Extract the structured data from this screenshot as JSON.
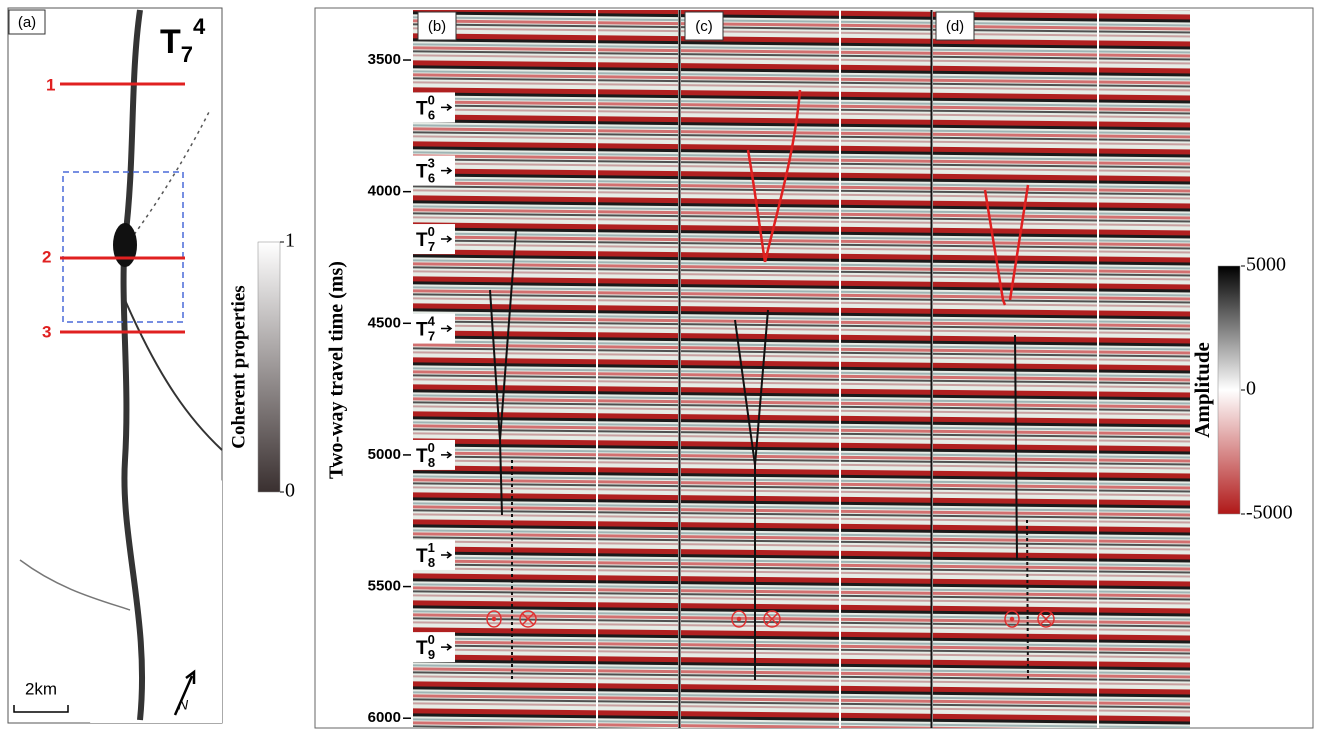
{
  "panel_labels": [
    "(a)",
    "(b)",
    "(c)",
    "(d)"
  ],
  "map": {
    "title_base": "T",
    "title_sub": "7",
    "title_sup": "4",
    "section_lines": [
      "1",
      "2",
      "3"
    ],
    "scale_bar": "2km",
    "north": "N"
  },
  "coherence_colorbar": {
    "title": "Coherent properties",
    "lim": [
      0,
      1
    ],
    "ticks": [
      1,
      0
    ]
  },
  "time_axis": {
    "title": "Two-way travel time (ms)",
    "ylim": [
      3310,
      6060
    ],
    "yticks": [
      3500,
      4000,
      4500,
      5000,
      5500,
      6000
    ]
  },
  "horizons": [
    {
      "base": "T",
      "sub": "6",
      "sup": "0",
      "time": 3680
    },
    {
      "base": "T",
      "sub": "6",
      "sup": "3",
      "time": 3920
    },
    {
      "base": "T",
      "sub": "7",
      "sup": "0",
      "time": 4180
    },
    {
      "base": "T",
      "sub": "7",
      "sup": "4",
      "time": 4520
    },
    {
      "base": "T",
      "sub": "8",
      "sup": "0",
      "time": 5000
    },
    {
      "base": "T",
      "sub": "8",
      "sup": "1",
      "time": 5380
    },
    {
      "base": "T",
      "sub": "9",
      "sup": "0",
      "time": 5730
    }
  ],
  "amplitude_colorbar": {
    "title": "Amplitude",
    "lim": [
      -5000,
      5000
    ],
    "ticks": [
      5000,
      0,
      -5000
    ]
  }
}
